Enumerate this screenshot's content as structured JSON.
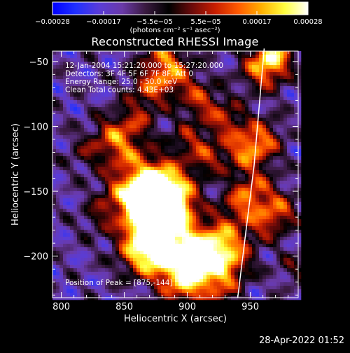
{
  "chart_data": {
    "type": "heatmap",
    "title": "Reconstructed RHESSI Image",
    "xlabel": "Heliocentric X (arcsec)",
    "ylabel": "Heliocentric Y (arcsec)",
    "x_range": [
      793,
      988
    ],
    "y_range": [
      -232,
      -42
    ],
    "x_ticks": [
      {
        "value": 800,
        "label": "800"
      },
      {
        "value": 850,
        "label": "850"
      },
      {
        "value": 900,
        "label": "900"
      },
      {
        "value": 950,
        "label": "950"
      }
    ],
    "y_ticks": [
      {
        "value": -50,
        "label": "−50"
      },
      {
        "value": -100,
        "label": "−100"
      },
      {
        "value": -150,
        "label": "−150"
      },
      {
        "value": -200,
        "label": "−200"
      }
    ],
    "colorbar": {
      "range": [
        -0.00028,
        0.00028
      ],
      "tick_labels": [
        "−0.00028",
        "−0.00017",
        "−5.5e−05",
        "5.5e−05",
        "0.00017",
        "0.00028"
      ],
      "unit_label": "(photons cm⁻² s⁻¹ asec⁻²)"
    },
    "annotations": [
      "12-Jan-2004 15:21:20.000 to 15:27:20.000",
      "Detectors: 3F 4F 5F 6F 7F 8F, Att 0",
      "Energy Range: 25.0 - 50.0 keV",
      "Clean     Total counts: 4.43E+03"
    ],
    "peak_label": "Position of Peak = [875,-144]",
    "peak": [
      875,
      -144
    ],
    "limb_points": [
      [
        961,
        -40
      ],
      [
        953,
        -130
      ],
      [
        940,
        -232
      ]
    ]
  },
  "timestamp": "28-Apr-2022 01:52",
  "colors": {
    "background": "#000000",
    "text": "#ffffff",
    "colormap": [
      "#0000ff",
      "#2030ff",
      "#5a3cd8",
      "#6a3aa8",
      "#3a1a40",
      "#000000",
      "#6a0a0a",
      "#c81e00",
      "#ff5a00",
      "#ffb000",
      "#ffff40",
      "#ffffff"
    ]
  }
}
